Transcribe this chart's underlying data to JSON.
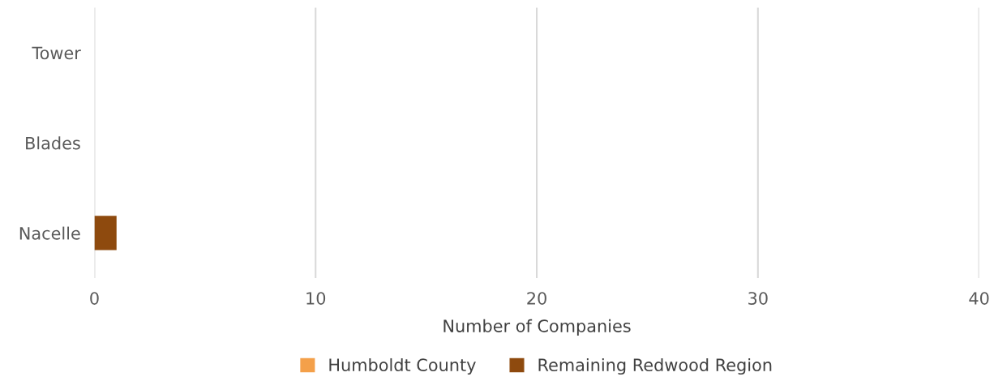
{
  "chart_data": {
    "type": "bar",
    "orientation": "horizontal",
    "stacked": true,
    "categories": [
      "Tower",
      "Blades",
      "Nacelle"
    ],
    "series": [
      {
        "name": "Humboldt County",
        "color": "#f4a04a",
        "values": [
          0,
          0,
          0
        ]
      },
      {
        "name": "Remaining Redwood Region",
        "color": "#8e4a0e",
        "values": [
          0,
          0,
          1
        ]
      }
    ],
    "xlabel": "Number of Companies",
    "xlim": [
      0,
      40
    ],
    "xticks": [
      0,
      10,
      20,
      30,
      40
    ],
    "grid": "x",
    "legend": "bottom"
  }
}
